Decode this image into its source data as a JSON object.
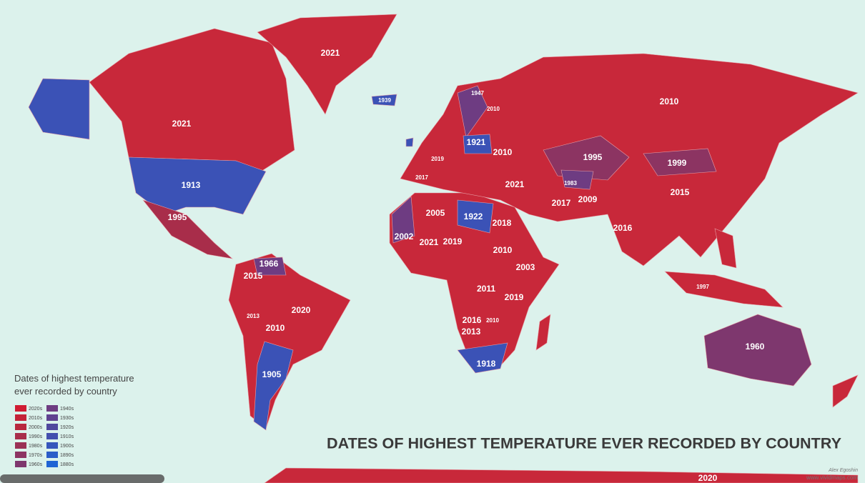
{
  "title": "DATES OF HIGHEST TEMPERATURE EVER RECORDED BY COUNTRY",
  "legend": {
    "title": [
      "Dates of highest temperature",
      "ever recorded by country"
    ],
    "entries": [
      {
        "label": "2020s",
        "color": "#d01c32"
      },
      {
        "label": "2010s",
        "color": "#c42338"
      },
      {
        "label": "2000s",
        "color": "#b8283e"
      },
      {
        "label": "1990s",
        "color": "#a82d4a"
      },
      {
        "label": "1980s",
        "color": "#9a3156"
      },
      {
        "label": "1970s",
        "color": "#8c3462"
      },
      {
        "label": "1960s",
        "color": "#7e376e"
      },
      {
        "label": "1940s",
        "color": "#6e3c82"
      },
      {
        "label": "1930s",
        "color": "#5f4290"
      },
      {
        "label": "1920s",
        "color": "#50489e"
      },
      {
        "label": "1910s",
        "color": "#434fae"
      },
      {
        "label": "1900s",
        "color": "#3656bc"
      },
      {
        "label": "1890s",
        "color": "#2b5dc8"
      },
      {
        "label": "1880s",
        "color": "#2064d4"
      }
    ]
  },
  "labels": [
    "2021",
    "2021",
    "1913",
    "1995",
    "1966",
    "2015",
    "2020",
    "2013",
    "2010",
    "1905",
    "2010",
    "1995",
    "1999",
    "2015",
    "2016",
    "2017",
    "2009",
    "1983",
    "2021",
    "1947",
    "2010",
    "1921",
    "2010",
    "2019",
    "2017",
    "2005",
    "1922",
    "2018",
    "2002",
    "2021",
    "2019",
    "2010",
    "2003",
    "2011",
    "2019",
    "2016",
    "2010",
    "2013",
    "1918",
    "1960",
    "1997",
    "2020",
    "1939"
  ],
  "credit": [
    "Alex Egoshin",
    "www.vividmaps.com"
  ]
}
